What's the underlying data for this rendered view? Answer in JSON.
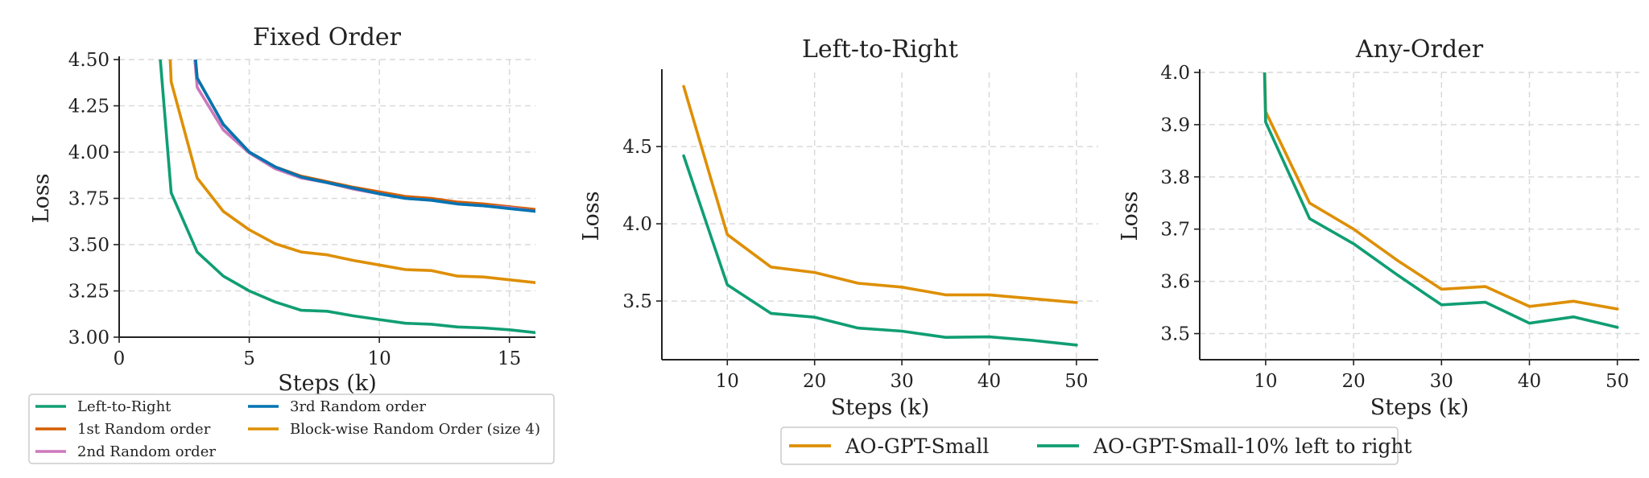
{
  "chart_data": [
    {
      "type": "line",
      "title": "Fixed Order",
      "xlabel": "Steps (k)",
      "ylabel": "Loss",
      "xlim": [
        0,
        16
      ],
      "ylim": [
        3.0,
        4.5
      ],
      "xticks": [
        0,
        5,
        10,
        15
      ],
      "yticks": [
        3.0,
        3.25,
        3.5,
        3.75,
        4.0,
        4.25,
        4.5
      ],
      "ytick_labels": [
        "3.00",
        "3.25",
        "3.50",
        "3.75",
        "4.00",
        "4.25",
        "4.50"
      ],
      "grid": true,
      "legend": "below",
      "series": [
        {
          "name": "Left-to-Right",
          "color": "#109e73",
          "x": [
            1,
            2,
            3,
            4,
            5,
            6,
            7,
            8,
            9,
            10,
            11,
            12,
            13,
            14,
            15,
            16
          ],
          "y": [
            5.5,
            3.78,
            3.46,
            3.33,
            3.25,
            3.19,
            3.145,
            3.14,
            3.115,
            3.095,
            3.075,
            3.07,
            3.055,
            3.05,
            3.04,
            3.025
          ]
        },
        {
          "name": "1st Random order",
          "color": "#d55e00",
          "x": [
            2,
            3,
            4,
            5,
            6,
            7,
            8,
            9,
            10,
            11,
            12,
            13,
            14,
            15,
            16
          ],
          "y": [
            6.0,
            4.4,
            4.15,
            4.0,
            3.92,
            3.87,
            3.84,
            3.81,
            3.785,
            3.76,
            3.75,
            3.73,
            3.72,
            3.705,
            3.69
          ]
        },
        {
          "name": "2nd Random order",
          "color": "#cc78bc",
          "x": [
            2,
            3,
            4,
            5,
            6,
            7,
            8,
            9,
            10,
            11,
            12,
            13,
            14,
            15,
            16
          ],
          "y": [
            6.0,
            4.35,
            4.12,
            3.995,
            3.91,
            3.86,
            3.835,
            3.8,
            3.775,
            3.75,
            3.74,
            3.72,
            3.71,
            3.7,
            3.68
          ]
        },
        {
          "name": "3rd Random order",
          "color": "#0173b2",
          "x": [
            2,
            3,
            4,
            5,
            6,
            7,
            8,
            9,
            10,
            11,
            12,
            13,
            14,
            15,
            16
          ],
          "y": [
            6.0,
            4.4,
            4.15,
            4.0,
            3.92,
            3.865,
            3.835,
            3.805,
            3.775,
            3.75,
            3.74,
            3.72,
            3.71,
            3.695,
            3.68
          ]
        },
        {
          "name": "Block-wise Random Order (size 4)",
          "color": "#de8f05",
          "x": [
            1.5,
            2,
            3,
            4,
            5,
            6,
            7,
            8,
            9,
            10,
            11,
            12,
            13,
            14,
            15,
            16
          ],
          "y": [
            6.0,
            4.38,
            3.86,
            3.68,
            3.58,
            3.505,
            3.46,
            3.445,
            3.415,
            3.39,
            3.365,
            3.36,
            3.33,
            3.325,
            3.31,
            3.295
          ]
        }
      ]
    },
    {
      "type": "line",
      "title": "Left-to-Right",
      "xlabel": "Steps (k)",
      "ylabel": "Loss",
      "xlim": [
        2.5,
        52.5
      ],
      "ylim": [
        3.12,
        4.98
      ],
      "xticks": [
        10,
        20,
        30,
        40,
        50
      ],
      "yticks": [
        3.5,
        4.0,
        4.5
      ],
      "ytick_labels": [
        "3.5",
        "4.0",
        "4.5"
      ],
      "grid": true,
      "legend": "below",
      "series": [
        {
          "name": "AO-GPT-Small",
          "color": "#de8f05",
          "x": [
            5,
            10,
            15,
            20,
            25,
            30,
            35,
            40,
            45,
            50
          ],
          "y": [
            4.89,
            3.93,
            3.72,
            3.685,
            3.615,
            3.59,
            3.54,
            3.54,
            3.515,
            3.49
          ]
        },
        {
          "name": "AO-GPT-Small-10% left to right",
          "color": "#109e73",
          "x": [
            5,
            10,
            15,
            20,
            25,
            30,
            35,
            40,
            45,
            50
          ],
          "y": [
            4.44,
            3.605,
            3.42,
            3.395,
            3.325,
            3.305,
            3.265,
            3.268,
            3.245,
            3.215
          ]
        }
      ]
    },
    {
      "type": "line",
      "title": "Any-Order",
      "xlabel": "Steps (k)",
      "ylabel": "Loss",
      "xlim": [
        2.5,
        52.5
      ],
      "ylim": [
        3.45,
        4.0
      ],
      "xticks": [
        10,
        20,
        30,
        40,
        50
      ],
      "yticks": [
        3.5,
        3.6,
        3.7,
        3.8,
        3.9,
        4.0
      ],
      "ytick_labels": [
        "3.5",
        "3.6",
        "3.7",
        "3.8",
        "3.9",
        "4.0"
      ],
      "grid": true,
      "series": [
        {
          "name": "AO-GPT-Small",
          "color": "#de8f05",
          "x": [
            9.6,
            10,
            15,
            20,
            25,
            30,
            35,
            40,
            45,
            50
          ],
          "y": [
            4.2,
            3.925,
            3.75,
            3.7,
            3.64,
            3.585,
            3.59,
            3.552,
            3.562,
            3.547
          ]
        },
        {
          "name": "AO-GPT-Small-10% left to right",
          "color": "#109e73",
          "x": [
            9.6,
            10,
            15,
            20,
            25,
            30,
            35,
            40,
            45,
            50
          ],
          "y": [
            4.2,
            3.905,
            3.72,
            3.672,
            3.612,
            3.555,
            3.56,
            3.52,
            3.532,
            3.512
          ]
        }
      ]
    }
  ]
}
